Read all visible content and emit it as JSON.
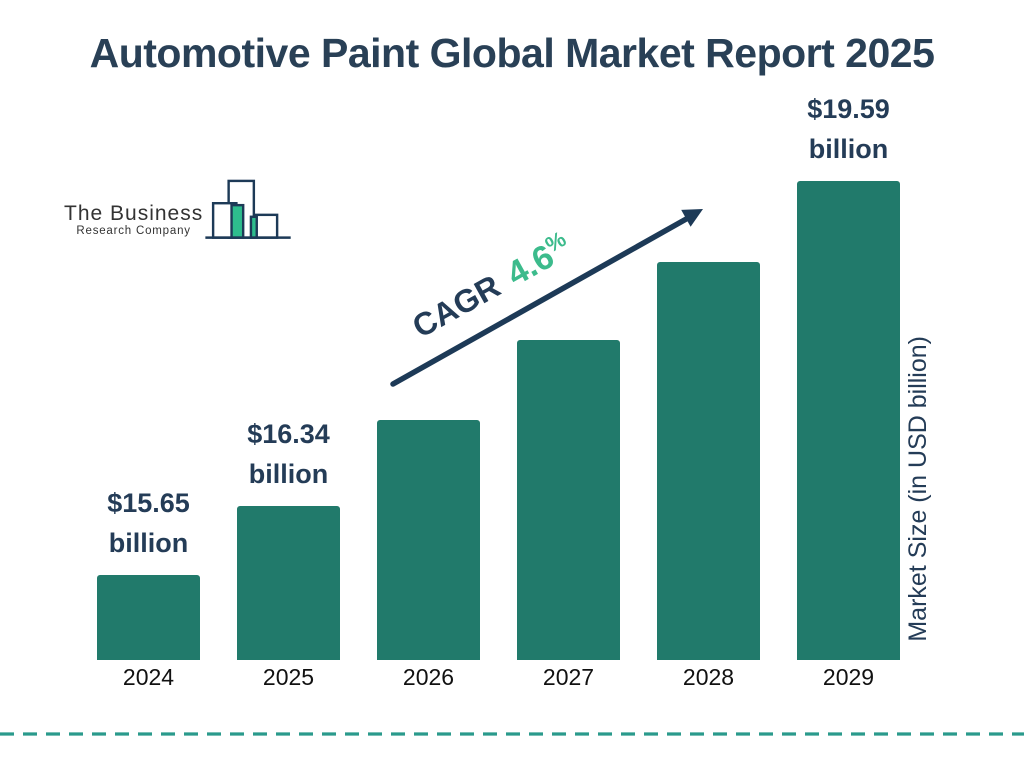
{
  "page": {
    "title": "Automotive Paint Global Market Report 2025"
  },
  "logo": {
    "name_line1": "The Business",
    "name_line2": "Research Company"
  },
  "annotation": {
    "cagr_label": "CAGR",
    "cagr_value": "4.6",
    "percent_sign": "%"
  },
  "axis": {
    "y_label": "Market Size (in USD billion)"
  },
  "chart_data": {
    "type": "bar",
    "title": "Automotive Paint Global Market Report 2025",
    "ylabel": "Market Size (in USD billion)",
    "xlabel": "",
    "categories": [
      "2024",
      "2025",
      "2026",
      "2027",
      "2028",
      "2029"
    ],
    "values": [
      15.65,
      16.34,
      17.2,
      18.0,
      18.78,
      19.59
    ],
    "values_estimated": [
      false,
      false,
      true,
      true,
      true,
      false
    ],
    "data_labels": {
      "0": [
        "$15.65",
        "billion"
      ],
      "1": [
        "$16.34",
        "billion"
      ],
      "5": [
        "$19.59",
        "billion"
      ]
    },
    "cagr_annotation": "CAGR 4.6%",
    "value_axis_baseline": 14.8,
    "grid": false,
    "legend": false,
    "bar_color": "#217a6b"
  },
  "colors": {
    "navy": "#243c57",
    "bar_teal": "#217a6b",
    "green_accent": "#3cbb8c",
    "logo_green": "#2ebd8d",
    "dashed_line": "#2a9a8c"
  }
}
